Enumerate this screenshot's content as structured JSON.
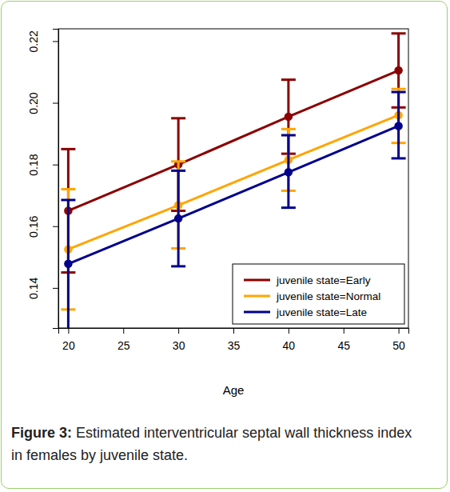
{
  "chart_data": {
    "type": "line",
    "figure_label": "Figure 3:",
    "title": "Estimated interventricular septal wall thickness index in females by juvenile state.",
    "x_label": "Age",
    "x": [
      20,
      30,
      40,
      50
    ],
    "xlim": [
      19.1,
      50.9
    ],
    "xticks": [
      20,
      25,
      30,
      35,
      40,
      45,
      50
    ],
    "ylim": [
      0.127,
      0.224
    ],
    "yticks": [
      0.14,
      0.16,
      0.18,
      {
        "value": 0.2,
        "label": "0.20"
      },
      0.22
    ],
    "legend": "bottom-right",
    "marker": "circle",
    "series": [
      {
        "name": "juvenile state=Early",
        "color": "#8b0000",
        "values": [
          0.165,
          0.18,
          0.1955,
          0.2105
        ],
        "lower": [
          0.145,
          0.165,
          0.1835,
          0.1985
        ],
        "upper": [
          0.185,
          0.195,
          0.2075,
          0.2225
        ]
      },
      {
        "name": "juvenile state=Normal",
        "color": "#ffa500",
        "values": [
          0.1525,
          0.1668,
          0.1815,
          0.196
        ],
        "lower": [
          0.133,
          0.1528,
          0.1715,
          0.187
        ],
        "upper": [
          0.172,
          0.181,
          0.1915,
          0.2045
        ]
      },
      {
        "name": "juvenile state=Late",
        "color": "#00008b",
        "values": [
          0.1478,
          0.1625,
          0.1775,
          0.1925
        ],
        "lower": [
          0.1265,
          0.147,
          0.166,
          0.182
        ],
        "upper": [
          0.1685,
          0.178,
          0.1895,
          0.2035
        ]
      }
    ]
  }
}
